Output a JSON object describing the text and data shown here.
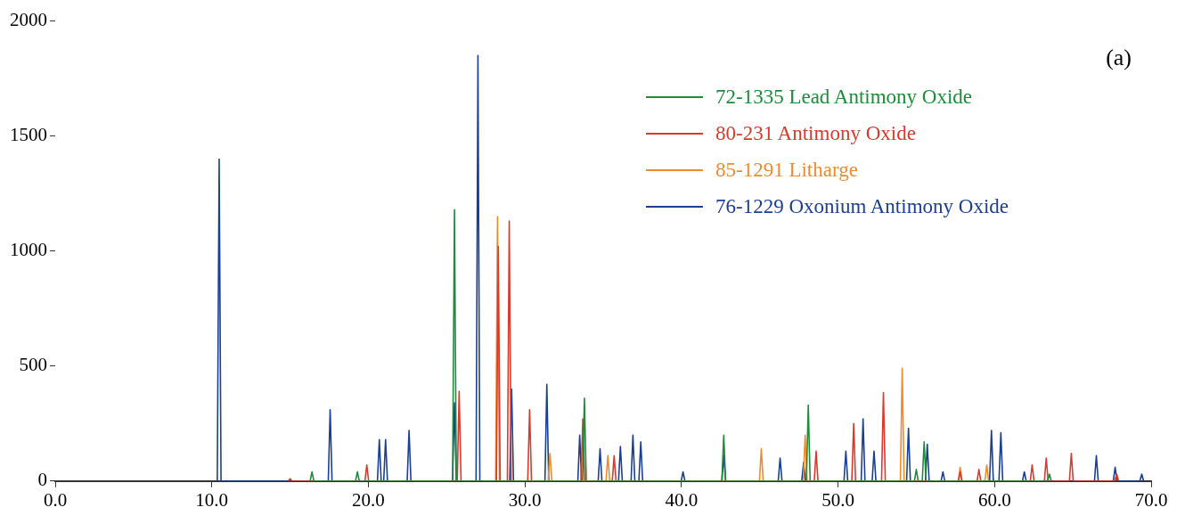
{
  "chart_data": {
    "type": "line",
    "annotations": [
      "(a)"
    ],
    "xlim": [
      0,
      70
    ],
    "ylim": [
      0,
      2000
    ],
    "xticks": [
      {
        "value": 0,
        "label": "0.0"
      },
      {
        "value": 10,
        "label": "10.0"
      },
      {
        "value": 20,
        "label": "20.0"
      },
      {
        "value": 30,
        "label": "30.0"
      },
      {
        "value": 40,
        "label": "40.0"
      },
      {
        "value": 50,
        "label": "50.0"
      },
      {
        "value": 60,
        "label": "60.0"
      },
      {
        "value": 70,
        "label": "70.0"
      }
    ],
    "yticks": [
      0,
      500,
      1000,
      1500,
      2000
    ],
    "grid": false,
    "legend": "top right",
    "marker": "none",
    "line_style": "solid",
    "series": [
      {
        "name": "72-1335 Lead Antimony Oxide",
        "color": "#1e8c3a",
        "x": [
          16.28,
          16.4,
          16.52,
          19.18,
          19.3,
          19.42,
          25.38,
          25.5,
          25.62,
          33.68,
          33.8,
          33.92,
          42.58,
          42.7,
          42.82,
          47.98,
          48.1,
          48.22,
          54.88,
          55,
          55.12,
          55.38,
          55.5,
          55.62,
          63.38,
          63.5,
          63.62
        ],
        "values": [
          0,
          40,
          0,
          0,
          40,
          0,
          0,
          1180,
          0,
          0,
          360,
          0,
          0,
          200,
          0,
          0,
          330,
          0,
          0,
          50,
          0,
          0,
          170,
          0,
          0,
          30,
          0
        ]
      },
      {
        "name": "80-231 Antimony Oxide",
        "color": "#d93a2b",
        "x": [
          14.88,
          15,
          15.12,
          19.78,
          19.9,
          20.02,
          25.68,
          25.8,
          25.92,
          28.18,
          28.3,
          28.42,
          28.88,
          29,
          29.12,
          30.18,
          30.3,
          30.42,
          33.58,
          33.7,
          33.82,
          35.58,
          35.7,
          35.82,
          48.48,
          48.6,
          48.72,
          50.88,
          51,
          51.12,
          52.78,
          52.9,
          53.02,
          57.68,
          57.8,
          57.92,
          58.88,
          59,
          59.12,
          62.28,
          62.4,
          62.52,
          63.18,
          63.3,
          63.42,
          64.78,
          64.9,
          65.02,
          67.68,
          67.8,
          67.92
        ],
        "values": [
          0,
          10,
          0,
          0,
          70,
          0,
          0,
          390,
          0,
          0,
          1020,
          0,
          0,
          1130,
          0,
          0,
          310,
          0,
          0,
          270,
          0,
          0,
          110,
          0,
          0,
          130,
          0,
          0,
          250,
          0,
          0,
          385,
          0,
          0,
          40,
          0,
          0,
          50,
          0,
          0,
          70,
          0,
          0,
          100,
          0,
          0,
          120,
          0,
          0,
          30,
          0
        ]
      },
      {
        "name": "85-1291 Litharge",
        "color": "#f08a2e",
        "x": [
          28.13,
          28.25,
          28.37,
          31.48,
          31.6,
          31.72,
          35.18,
          35.3,
          35.42,
          44.98,
          45.1,
          45.22,
          47.78,
          47.9,
          48.02,
          53.98,
          54.1,
          54.22,
          57.68,
          57.8,
          57.92,
          59.38,
          59.5,
          59.62
        ],
        "values": [
          0,
          1150,
          0,
          0,
          120,
          0,
          0,
          110,
          0,
          0,
          140,
          0,
          0,
          200,
          0,
          0,
          490,
          0,
          0,
          60,
          0,
          0,
          70,
          0
        ]
      },
      {
        "name": "76-1229 Oxonium Antimony Oxide",
        "color": "#1a3f94",
        "x": [
          10.35,
          10.47,
          10.59,
          17.44,
          17.56,
          17.68,
          20.58,
          20.7,
          20.82,
          20.98,
          21.1,
          21.22,
          22.48,
          22.6,
          22.72,
          25.38,
          25.5,
          25.62,
          26.88,
          27,
          27.12,
          29.03,
          29.15,
          29.27,
          31.28,
          31.4,
          31.52,
          33.38,
          33.5,
          33.62,
          34.68,
          34.8,
          34.92,
          35.98,
          36.1,
          36.22,
          36.78,
          36.9,
          37.02,
          37.28,
          37.4,
          37.52,
          39.98,
          40.1,
          40.22,
          42.58,
          42.7,
          42.82,
          46.18,
          46.3,
          46.42,
          47.68,
          47.8,
          47.92,
          50.38,
          50.5,
          50.62,
          51.48,
          51.6,
          51.72,
          52.18,
          52.3,
          52.42,
          54.38,
          54.5,
          54.62,
          55.58,
          55.7,
          55.82,
          56.58,
          56.7,
          56.82,
          59.68,
          59.8,
          59.92,
          60.28,
          60.4,
          60.52,
          61.78,
          61.9,
          62.02,
          66.38,
          66.5,
          66.62,
          67.58,
          67.7,
          67.82,
          69.28,
          69.4,
          69.52
        ],
        "values": [
          0,
          1400,
          0,
          0,
          310,
          0,
          0,
          180,
          0,
          0,
          180,
          0,
          0,
          220,
          0,
          0,
          340,
          0,
          0,
          1850,
          0,
          0,
          400,
          0,
          0,
          420,
          0,
          0,
          200,
          0,
          0,
          140,
          0,
          0,
          150,
          0,
          0,
          200,
          0,
          0,
          170,
          0,
          0,
          40,
          0,
          0,
          110,
          0,
          0,
          100,
          0,
          0,
          80,
          0,
          0,
          130,
          0,
          0,
          270,
          0,
          0,
          130,
          0,
          0,
          230,
          0,
          0,
          160,
          0,
          0,
          40,
          0,
          0,
          220,
          0,
          0,
          210,
          0,
          0,
          40,
          0,
          0,
          110,
          0,
          0,
          60,
          0,
          0,
          30,
          0
        ]
      }
    ]
  }
}
